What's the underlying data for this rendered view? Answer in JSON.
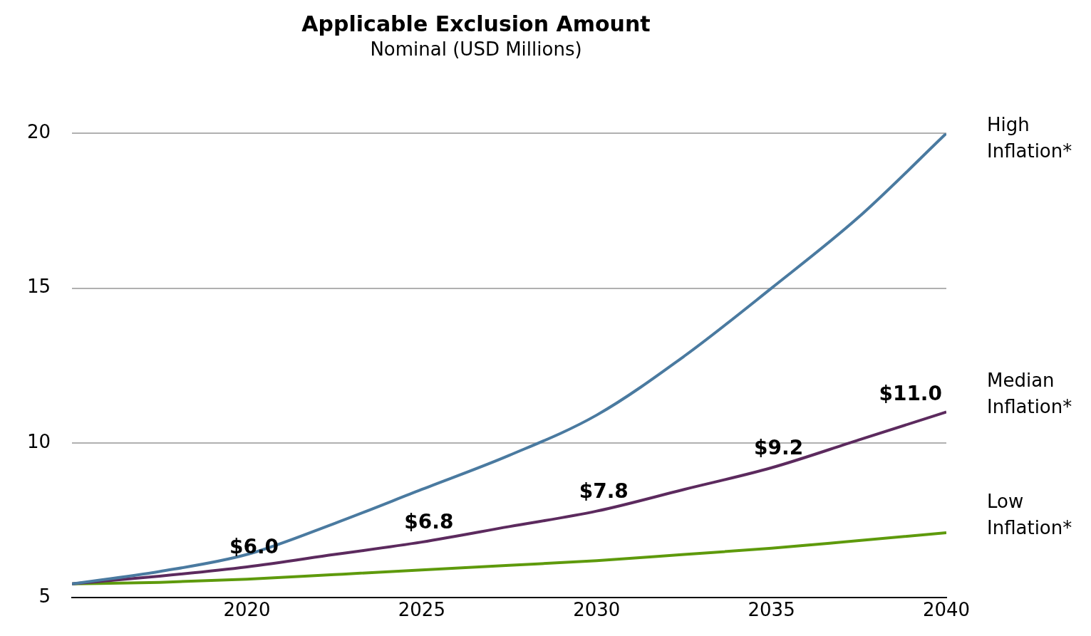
{
  "chart_data": {
    "type": "line",
    "title": "Applicable Exclusion Amount",
    "subtitle": "Nominal (USD Millions)",
    "x": [
      2015,
      2017.5,
      2020,
      2022.5,
      2025,
      2027.5,
      2030,
      2032.5,
      2035,
      2037.5,
      2040
    ],
    "xlim": [
      2015,
      2040
    ],
    "xticks": [
      2020,
      2025,
      2030,
      2035,
      2040
    ],
    "ylim": [
      5,
      20
    ],
    "yticks": [
      5,
      10,
      15,
      20
    ],
    "grid": "y",
    "marker": "none",
    "series": [
      {
        "name": "High Inflation*",
        "color": "#4a7aa0",
        "values": [
          5.45,
          5.85,
          6.4,
          7.4,
          8.5,
          9.6,
          10.9,
          12.8,
          15,
          17.3,
          20
        ]
      },
      {
        "name": "Median Inflation*",
        "color": "#5c2a5e",
        "values": [
          5.45,
          5.7,
          6.0,
          6.4,
          6.8,
          7.3,
          7.8,
          8.5,
          9.2,
          10.1,
          11.0
        ],
        "value_labels": [
          null,
          null,
          "$6.0",
          null,
          "$6.8",
          null,
          "$7.8",
          null,
          "$9.2",
          null,
          "$11.0"
        ]
      },
      {
        "name": "Low Inflation*",
        "color": "#5e9a0c",
        "values": [
          5.45,
          5.5,
          5.6,
          5.75,
          5.9,
          6.05,
          6.2,
          6.4,
          6.6,
          6.85,
          7.1
        ]
      }
    ]
  }
}
